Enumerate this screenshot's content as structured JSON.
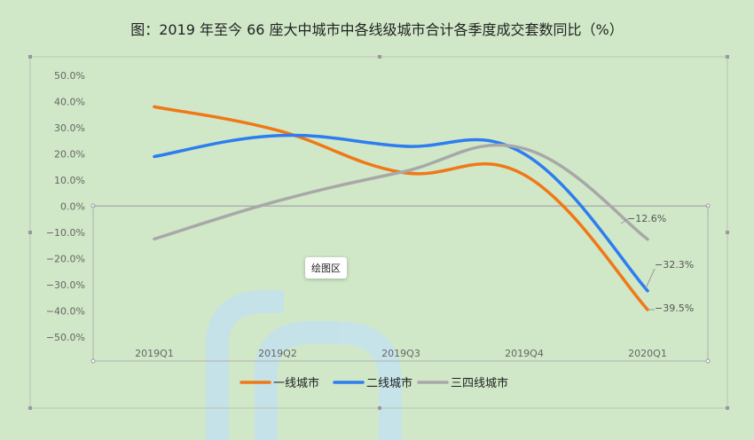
{
  "chart_data": {
    "type": "line",
    "title": "图：2019 年至今 66 座大中城市中各线级城市合计各季度成交套数同比（%）",
    "categories": [
      "2019Q1",
      "2019Q2",
      "2019Q3",
      "2019Q4",
      "2020Q1"
    ],
    "series": [
      {
        "name": "一线城市",
        "values": [
          38.0,
          29.0,
          13.0,
          12.0,
          -39.5
        ],
        "color": "#f07817",
        "end_label": "−39.5%"
      },
      {
        "name": "二线城市",
        "values": [
          19.0,
          27.0,
          23.0,
          20.0,
          -32.3
        ],
        "color": "#2e7df0",
        "end_label": "−32.3%"
      },
      {
        "name": "三四线城市",
        "values": [
          -12.5,
          2.0,
          13.0,
          22.0,
          -12.6
        ],
        "color": "#a8a8a8",
        "end_label": "−12.6%"
      }
    ],
    "y_ticks": [
      "50.0%",
      "40.0%",
      "30.0%",
      "20.0%",
      "10.0%",
      "0.0%",
      "−10.0%",
      "−20.0%",
      "−30.0%",
      "−40.0%",
      "−50.0%"
    ],
    "ylim": [
      -50,
      50
    ],
    "legend_position": "bottom",
    "grid": false
  },
  "tooltip_text": "绘图区"
}
